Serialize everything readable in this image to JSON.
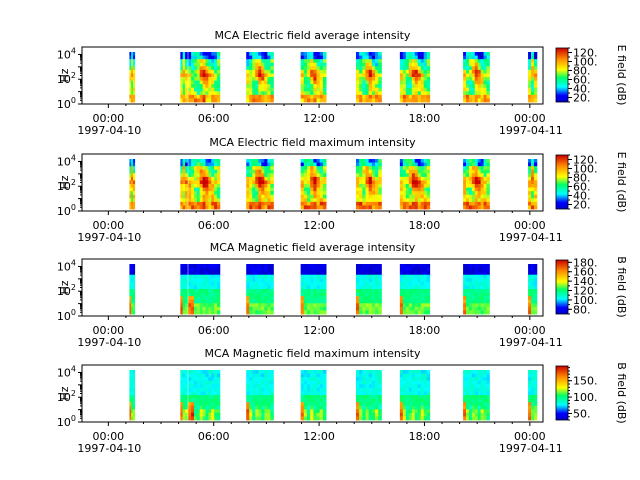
{
  "chart_data": [
    {
      "type": "heatmap",
      "title": "MCA  Electric field average intensity",
      "ylabel": "Hz",
      "yscale": "log",
      "ylim": [
        1,
        40000
      ],
      "ytick_labels": [
        "10^0",
        "10^2",
        "10^4"
      ],
      "xlim": [
        "1997-04-09T22:30",
        "1997-04-11T00:45"
      ],
      "x_ticks": [
        "00:00",
        "06:00",
        "12:00",
        "18:00",
        "00:00"
      ],
      "x_date_labels": {
        "00:00 start": "1997-04-10",
        "00:00 end": "1997-04-11"
      },
      "colorbar": {
        "label": "E field (dB)",
        "ticks": [
          "20.",
          "40.",
          "60.",
          "80.",
          "100.",
          "120."
        ],
        "range": [
          10,
          130
        ]
      },
      "data_segments_utc_hours": [
        [
          1.2,
          1.5
        ],
        [
          4.1,
          4.5
        ],
        [
          4.55,
          6.35
        ],
        [
          7.85,
          9.4
        ],
        [
          10.95,
          12.4
        ],
        [
          14.1,
          15.55
        ],
        [
          16.6,
          18.3
        ],
        [
          20.2,
          21.7
        ],
        [
          23.9,
          24.4
        ]
      ]
    },
    {
      "type": "heatmap",
      "title": "MCA  Electric field maximum intensity",
      "ylabel": "Hz",
      "yscale": "log",
      "ylim": [
        1,
        40000
      ],
      "ytick_labels": [
        "10^0",
        "10^2",
        "10^4"
      ],
      "xlim": [
        "1997-04-09T22:30",
        "1997-04-11T00:45"
      ],
      "x_ticks": [
        "00:00",
        "06:00",
        "12:00",
        "18:00",
        "00:00"
      ],
      "x_date_labels": {
        "00:00 start": "1997-04-10",
        "00:00 end": "1997-04-11"
      },
      "colorbar": {
        "label": "E field (dB)",
        "ticks": [
          "20.",
          "40.",
          "60.",
          "80.",
          "100.",
          "120."
        ],
        "range": [
          10,
          130
        ]
      },
      "data_segments_utc_hours": [
        [
          1.2,
          1.5
        ],
        [
          4.1,
          4.5
        ],
        [
          4.55,
          6.35
        ],
        [
          7.85,
          9.4
        ],
        [
          10.95,
          12.4
        ],
        [
          14.1,
          15.55
        ],
        [
          16.6,
          18.3
        ],
        [
          20.2,
          21.7
        ],
        [
          23.9,
          24.4
        ]
      ]
    },
    {
      "type": "heatmap",
      "title": "MCA  Magnetic field average intensity",
      "ylabel": "Hz",
      "yscale": "log",
      "ylim": [
        1,
        40000
      ],
      "ytick_labels": [
        "10^0",
        "10^2",
        "10^4"
      ],
      "xlim": [
        "1997-04-09T22:30",
        "1997-04-11T00:45"
      ],
      "x_ticks": [
        "00:00",
        "06:00",
        "12:00",
        "18:00",
        "00:00"
      ],
      "x_date_labels": {
        "00:00 start": "1997-04-10",
        "00:00 end": "1997-04-11"
      },
      "colorbar": {
        "label": "B field (dB)",
        "ticks": [
          "80.",
          "100.",
          "120.",
          "140.",
          "160.",
          "180."
        ],
        "range": [
          70,
          185
        ]
      },
      "data_segments_utc_hours": [
        [
          1.2,
          1.5
        ],
        [
          4.1,
          4.5
        ],
        [
          4.55,
          6.35
        ],
        [
          7.85,
          9.4
        ],
        [
          10.95,
          12.4
        ],
        [
          14.1,
          15.55
        ],
        [
          16.6,
          18.3
        ],
        [
          20.2,
          21.7
        ],
        [
          23.9,
          24.4
        ]
      ]
    },
    {
      "type": "heatmap",
      "title": "MCA  Magnetic field maximum intensity",
      "ylabel": "Hz",
      "yscale": "log",
      "ylim": [
        1,
        40000
      ],
      "ytick_labels": [
        "10^0",
        "10^2",
        "10^4"
      ],
      "xlim": [
        "1997-04-09T22:30",
        "1997-04-11T00:45"
      ],
      "x_ticks": [
        "00:00",
        "06:00",
        "12:00",
        "18:00",
        "00:00"
      ],
      "x_date_labels": {
        "00:00 start": "1997-04-10",
        "00:00 end": "1997-04-11"
      },
      "colorbar": {
        "label": "B field (dB)",
        "ticks": [
          "50.",
          "100.",
          "150."
        ],
        "range": [
          30,
          195
        ]
      },
      "data_segments_utc_hours": [
        [
          1.2,
          1.5
        ],
        [
          4.1,
          4.5
        ],
        [
          4.55,
          6.35
        ],
        [
          7.85,
          9.4
        ],
        [
          10.95,
          12.4
        ],
        [
          14.1,
          15.55
        ],
        [
          16.6,
          18.3
        ],
        [
          20.2,
          21.7
        ],
        [
          23.9,
          24.4
        ]
      ]
    }
  ]
}
